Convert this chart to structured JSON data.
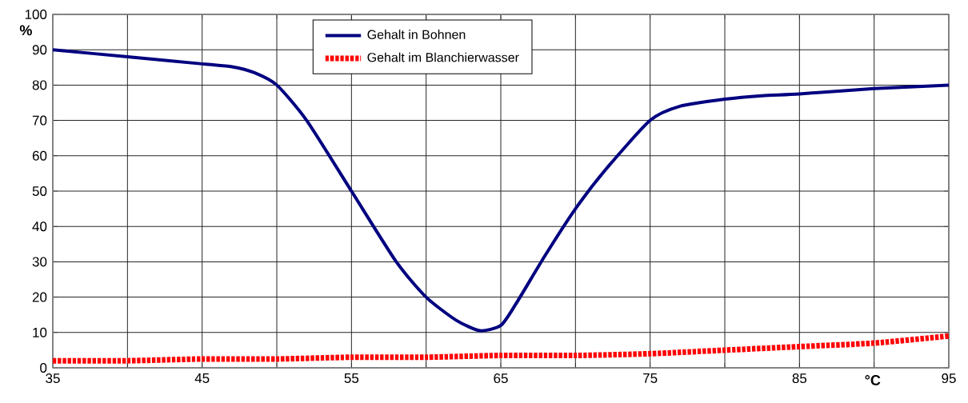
{
  "chart_data": {
    "type": "line",
    "xlabel": "°C",
    "ylabel": "%",
    "xlim": [
      35,
      95
    ],
    "ylim": [
      0,
      100
    ],
    "xticks": [
      35,
      {
        "value": 40,
        "label": null
      },
      45,
      {
        "value": 50,
        "label": null
      },
      55,
      {
        "value": 60,
        "label": null
      },
      65,
      {
        "value": 70,
        "label": null
      },
      75,
      {
        "value": 80,
        "label": null
      },
      85,
      {
        "value": 90,
        "label": null
      },
      95
    ],
    "yticks": [
      0,
      10,
      20,
      30,
      40,
      50,
      60,
      70,
      80,
      90,
      100
    ],
    "grid": true,
    "legend": "top",
    "marker": "none",
    "series": [
      {
        "name": "Gehalt in Bohnen",
        "color": "#000080",
        "line_style": "solid",
        "x": [
          35,
          40,
          45,
          47,
          48.5,
          50,
          52,
          55,
          58,
          60,
          62,
          63.6,
          65,
          66,
          68,
          70,
          72,
          75,
          77,
          80,
          82.5,
          85,
          90,
          95
        ],
        "values": [
          90,
          88,
          86,
          85.2,
          83.5,
          80,
          70,
          50,
          30,
          20,
          13.5,
          10.5,
          12,
          18,
          32,
          45,
          56,
          70,
          74,
          76,
          77,
          77.5,
          79,
          80
        ]
      },
      {
        "name": "Gehalt im Blanchierwasser",
        "color": "#ff0000",
        "line_style": "dotted",
        "x": [
          35,
          40,
          45,
          50,
          55,
          60,
          65,
          70,
          75,
          80,
          85,
          90,
          95
        ],
        "values": [
          2,
          2,
          2.5,
          2.5,
          3,
          3,
          3.5,
          3.5,
          4,
          5,
          6,
          7,
          9
        ]
      }
    ]
  }
}
